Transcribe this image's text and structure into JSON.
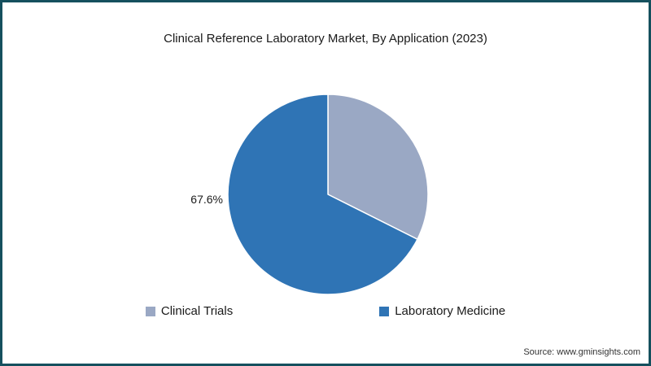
{
  "page": {
    "title": "Clinical Reference Laboratory Market, By Application (2023)",
    "source": "Source: www.gminsights.com"
  },
  "chart_data": {
    "type": "pie",
    "title": "Clinical Reference Laboratory Market, By Application (2023)",
    "slices": [
      {
        "id": "clinical-trials",
        "label": "Clinical Trials",
        "value": 32.4,
        "color": "#9aa8c4"
      },
      {
        "id": "laboratory-medicine",
        "label": "Laboratory Medicine",
        "value": 67.6,
        "color": "#2f74b5"
      }
    ],
    "start_angle_deg": 0,
    "direction": "clockwise",
    "data_label": {
      "text": "67.6%",
      "slice": "Laboratory Medicine",
      "position": "outside-left"
    },
    "legend_position": "bottom",
    "background": "#ffffff",
    "border_color": "#15505e"
  }
}
